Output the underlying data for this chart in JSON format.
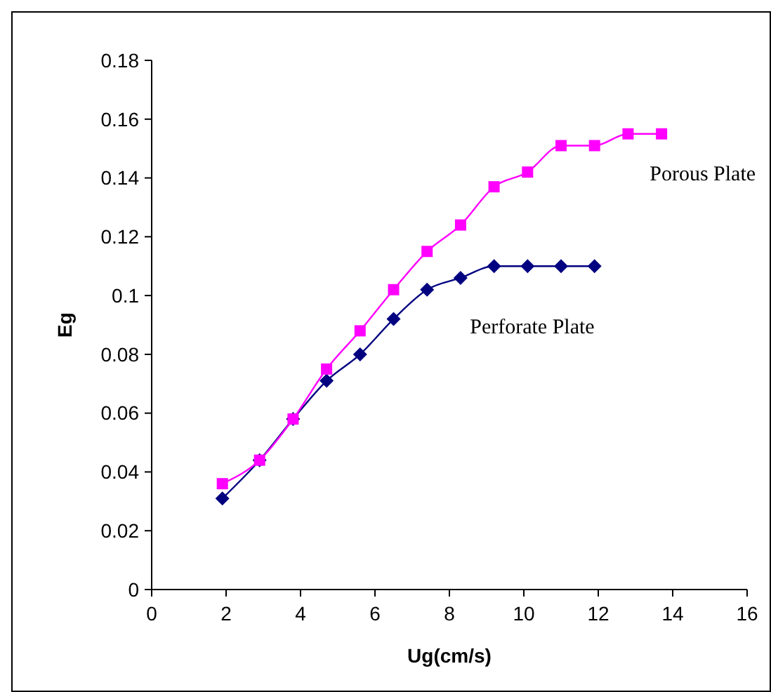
{
  "chart_data": {
    "type": "line",
    "xlabel": "Ug(cm/s)",
    "ylabel": "Eg",
    "xlim": [
      0,
      16
    ],
    "xticks": [
      0,
      2,
      4,
      6,
      8,
      10,
      12,
      14,
      16
    ],
    "ylim": [
      0,
      0.18
    ],
    "yticks": [
      0,
      0.02,
      0.04,
      0.06,
      0.08,
      0.1,
      0.12,
      0.14,
      0.16,
      0.18
    ],
    "grid": false,
    "line_style": "solid",
    "series": [
      {
        "name": "Porous Plate",
        "color": "#ff00ff",
        "marker": "square",
        "x": [
          1.9,
          2.9,
          3.8,
          4.7,
          5.6,
          6.5,
          7.4,
          8.3,
          9.2,
          10.1,
          11.0,
          11.9,
          12.8,
          13.7
        ],
        "values": [
          0.036,
          0.044,
          0.058,
          0.075,
          0.088,
          0.102,
          0.115,
          0.124,
          0.137,
          0.142,
          0.151,
          0.151,
          0.155,
          0.155
        ]
      },
      {
        "name": "Perforate Plate",
        "color": "#000080",
        "marker": "diamond",
        "x": [
          1.9,
          2.9,
          3.8,
          4.7,
          5.6,
          6.5,
          7.4,
          8.3,
          9.2,
          10.1,
          11.0,
          11.9
        ],
        "values": [
          0.031,
          0.044,
          0.058,
          0.071,
          0.08,
          0.092,
          0.102,
          0.106,
          0.11,
          0.11,
          0.11,
          0.11
        ]
      }
    ]
  }
}
